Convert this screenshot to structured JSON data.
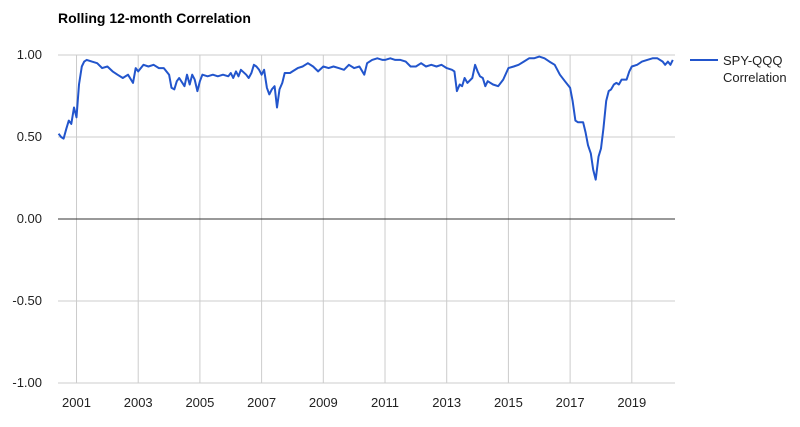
{
  "chart_data": {
    "type": "line",
    "title": "Rolling 12-month Correlation",
    "xlabel": "",
    "ylabel": "",
    "xlim": [
      2000.4,
      2020.4
    ],
    "ylim": [
      -1.0,
      1.0
    ],
    "y_ticks": [
      1.0,
      0.5,
      0.0,
      -0.5,
      -1.0
    ],
    "y_tick_labels": [
      "1.00",
      "0.50",
      "0.00",
      "-0.50",
      "-1.00"
    ],
    "x_ticks": [
      2001,
      2003,
      2005,
      2007,
      2009,
      2011,
      2013,
      2015,
      2017,
      2019
    ],
    "x_tick_labels": [
      "2001",
      "2003",
      "2005",
      "2007",
      "2009",
      "2011",
      "2013",
      "2015",
      "2017",
      "2019"
    ],
    "grid": true,
    "legend_position": "right",
    "series": [
      {
        "name": "SPY-QQQ Correlation",
        "color": "#2255cc",
        "points": [
          [
            2000.42,
            0.52
          ],
          [
            2000.5,
            0.5
          ],
          [
            2000.58,
            0.49
          ],
          [
            2000.67,
            0.55
          ],
          [
            2000.75,
            0.6
          ],
          [
            2000.83,
            0.58
          ],
          [
            2000.92,
            0.68
          ],
          [
            2001.0,
            0.62
          ],
          [
            2001.08,
            0.82
          ],
          [
            2001.17,
            0.93
          ],
          [
            2001.25,
            0.96
          ],
          [
            2001.33,
            0.97
          ],
          [
            2001.5,
            0.96
          ],
          [
            2001.67,
            0.95
          ],
          [
            2001.83,
            0.92
          ],
          [
            2002.0,
            0.93
          ],
          [
            2002.17,
            0.9
          ],
          [
            2002.33,
            0.88
          ],
          [
            2002.5,
            0.86
          ],
          [
            2002.67,
            0.88
          ],
          [
            2002.83,
            0.83
          ],
          [
            2002.92,
            0.92
          ],
          [
            2003.0,
            0.9
          ],
          [
            2003.17,
            0.94
          ],
          [
            2003.33,
            0.93
          ],
          [
            2003.5,
            0.94
          ],
          [
            2003.67,
            0.92
          ],
          [
            2003.83,
            0.92
          ],
          [
            2004.0,
            0.88
          ],
          [
            2004.08,
            0.8
          ],
          [
            2004.17,
            0.79
          ],
          [
            2004.25,
            0.84
          ],
          [
            2004.33,
            0.86
          ],
          [
            2004.5,
            0.81
          ],
          [
            2004.58,
            0.88
          ],
          [
            2004.67,
            0.82
          ],
          [
            2004.75,
            0.88
          ],
          [
            2004.83,
            0.85
          ],
          [
            2004.92,
            0.78
          ],
          [
            2005.0,
            0.84
          ],
          [
            2005.08,
            0.88
          ],
          [
            2005.25,
            0.87
          ],
          [
            2005.42,
            0.88
          ],
          [
            2005.58,
            0.87
          ],
          [
            2005.75,
            0.88
          ],
          [
            2005.92,
            0.87
          ],
          [
            2006.0,
            0.89
          ],
          [
            2006.08,
            0.86
          ],
          [
            2006.17,
            0.9
          ],
          [
            2006.25,
            0.87
          ],
          [
            2006.33,
            0.91
          ],
          [
            2006.5,
            0.88
          ],
          [
            2006.58,
            0.86
          ],
          [
            2006.67,
            0.89
          ],
          [
            2006.75,
            0.94
          ],
          [
            2006.83,
            0.93
          ],
          [
            2006.92,
            0.91
          ],
          [
            2007.0,
            0.88
          ],
          [
            2007.08,
            0.91
          ],
          [
            2007.17,
            0.8
          ],
          [
            2007.25,
            0.76
          ],
          [
            2007.33,
            0.79
          ],
          [
            2007.42,
            0.81
          ],
          [
            2007.5,
            0.68
          ],
          [
            2007.58,
            0.79
          ],
          [
            2007.67,
            0.83
          ],
          [
            2007.75,
            0.89
          ],
          [
            2007.92,
            0.89
          ],
          [
            2008.0,
            0.9
          ],
          [
            2008.17,
            0.92
          ],
          [
            2008.33,
            0.93
          ],
          [
            2008.5,
            0.95
          ],
          [
            2008.67,
            0.93
          ],
          [
            2008.83,
            0.9
          ],
          [
            2009.0,
            0.93
          ],
          [
            2009.17,
            0.92
          ],
          [
            2009.33,
            0.93
          ],
          [
            2009.5,
            0.92
          ],
          [
            2009.67,
            0.91
          ],
          [
            2009.83,
            0.94
          ],
          [
            2010.0,
            0.92
          ],
          [
            2010.17,
            0.93
          ],
          [
            2010.33,
            0.88
          ],
          [
            2010.42,
            0.95
          ],
          [
            2010.58,
            0.97
          ],
          [
            2010.75,
            0.98
          ],
          [
            2010.92,
            0.97
          ],
          [
            2011.0,
            0.97
          ],
          [
            2011.17,
            0.98
          ],
          [
            2011.33,
            0.97
          ],
          [
            2011.5,
            0.97
          ],
          [
            2011.67,
            0.96
          ],
          [
            2011.83,
            0.93
          ],
          [
            2012.0,
            0.93
          ],
          [
            2012.17,
            0.95
          ],
          [
            2012.33,
            0.93
          ],
          [
            2012.5,
            0.94
          ],
          [
            2012.67,
            0.93
          ],
          [
            2012.83,
            0.94
          ],
          [
            2013.0,
            0.92
          ],
          [
            2013.17,
            0.91
          ],
          [
            2013.25,
            0.9
          ],
          [
            2013.33,
            0.78
          ],
          [
            2013.42,
            0.82
          ],
          [
            2013.5,
            0.81
          ],
          [
            2013.58,
            0.86
          ],
          [
            2013.67,
            0.83
          ],
          [
            2013.83,
            0.86
          ],
          [
            2013.92,
            0.94
          ],
          [
            2014.0,
            0.9
          ],
          [
            2014.08,
            0.87
          ],
          [
            2014.17,
            0.86
          ],
          [
            2014.25,
            0.81
          ],
          [
            2014.33,
            0.84
          ],
          [
            2014.5,
            0.82
          ],
          [
            2014.67,
            0.81
          ],
          [
            2014.83,
            0.85
          ],
          [
            2015.0,
            0.92
          ],
          [
            2015.17,
            0.93
          ],
          [
            2015.33,
            0.94
          ],
          [
            2015.5,
            0.96
          ],
          [
            2015.67,
            0.98
          ],
          [
            2015.83,
            0.98
          ],
          [
            2016.0,
            0.99
          ],
          [
            2016.17,
            0.98
          ],
          [
            2016.33,
            0.96
          ],
          [
            2016.5,
            0.94
          ],
          [
            2016.67,
            0.88
          ],
          [
            2016.83,
            0.84
          ],
          [
            2017.0,
            0.8
          ],
          [
            2017.08,
            0.72
          ],
          [
            2017.17,
            0.6
          ],
          [
            2017.25,
            0.59
          ],
          [
            2017.42,
            0.59
          ],
          [
            2017.5,
            0.53
          ],
          [
            2017.58,
            0.45
          ],
          [
            2017.67,
            0.4
          ],
          [
            2017.75,
            0.3
          ],
          [
            2017.83,
            0.24
          ],
          [
            2017.92,
            0.38
          ],
          [
            2018.0,
            0.43
          ],
          [
            2018.08,
            0.55
          ],
          [
            2018.17,
            0.72
          ],
          [
            2018.25,
            0.78
          ],
          [
            2018.33,
            0.79
          ],
          [
            2018.42,
            0.82
          ],
          [
            2018.5,
            0.83
          ],
          [
            2018.58,
            0.82
          ],
          [
            2018.67,
            0.85
          ],
          [
            2018.83,
            0.85
          ],
          [
            2018.92,
            0.9
          ],
          [
            2019.0,
            0.93
          ],
          [
            2019.17,
            0.94
          ],
          [
            2019.33,
            0.96
          ],
          [
            2019.5,
            0.97
          ],
          [
            2019.67,
            0.98
          ],
          [
            2019.83,
            0.98
          ],
          [
            2020.0,
            0.96
          ],
          [
            2020.08,
            0.94
          ],
          [
            2020.17,
            0.96
          ],
          [
            2020.25,
            0.94
          ],
          [
            2020.33,
            0.97
          ]
        ]
      }
    ]
  }
}
